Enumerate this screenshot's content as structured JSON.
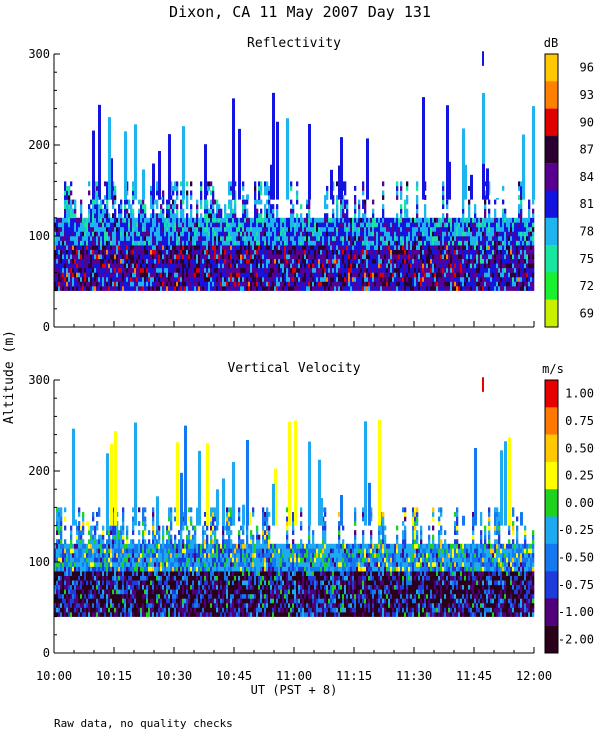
{
  "figure_title": "Dixon, CA 11 May 2007  Day 131",
  "footer_note": "Raw data, no quality checks",
  "y_axis_label": "Altitude (m)",
  "x_axis_label": "UT  (PST + 8)",
  "chart_data": [
    {
      "type": "heatmap",
      "title": "Reflectivity",
      "ylabel": "Altitude (m)",
      "xlabel": "UT  (PST + 8)",
      "x_ticks": [
        "10:00",
        "10:15",
        "10:30",
        "10:45",
        "11:00",
        "11:15",
        "11:30",
        "11:45",
        "12:00"
      ],
      "y_ticks": [
        0,
        100,
        200,
        300
      ],
      "xlim": [
        "10:00",
        "12:00"
      ],
      "ylim": [
        0,
        300
      ],
      "colorbar_unit": "dB",
      "colorbar_labels": [
        "96",
        "93",
        "90",
        "87",
        "84",
        "81",
        "78",
        "75",
        "72",
        "69"
      ],
      "colorbar_colors": [
        "#ffc800",
        "#ff8000",
        "#e00000",
        "#2a0030",
        "#5a0090",
        "#1414e0",
        "#1eb4f0",
        "#18e6a0",
        "#18f030",
        "#c8f000"
      ],
      "data_summary": {
        "main_echo_altitude_range_m": [
          40,
          140
        ],
        "sparse_echo_tops_m": 260,
        "isolated_echo": {
          "time": "11:47",
          "altitude_m": 295
        }
      }
    },
    {
      "type": "heatmap",
      "title": "Vertical Velocity",
      "ylabel": "Altitude (m)",
      "xlabel": "UT  (PST + 8)",
      "x_ticks": [
        "10:00",
        "10:15",
        "10:30",
        "10:45",
        "11:00",
        "11:15",
        "11:30",
        "11:45",
        "12:00"
      ],
      "y_ticks": [
        0,
        100,
        200,
        300
      ],
      "xlim": [
        "10:00",
        "12:00"
      ],
      "ylim": [
        0,
        300
      ],
      "colorbar_unit": "m/s",
      "colorbar_labels": [
        "1.00",
        "0.75",
        "0.50",
        "0.25",
        "0.00",
        "-0.25",
        "-0.50",
        "-0.75",
        "-1.00",
        "-2.00"
      ],
      "colorbar_colors": [
        "#e60000",
        "#ff7800",
        "#ffc800",
        "#ffff00",
        "#1ed21e",
        "#1eaaf0",
        "#1478f0",
        "#1e3cdc",
        "#50007a",
        "#2a001a"
      ],
      "data_summary": {
        "main_echo_altitude_range_m": [
          40,
          140
        ],
        "sparse_echo_tops_m": 260,
        "isolated_echo": {
          "time": "11:47",
          "altitude_m": 295
        }
      }
    }
  ]
}
